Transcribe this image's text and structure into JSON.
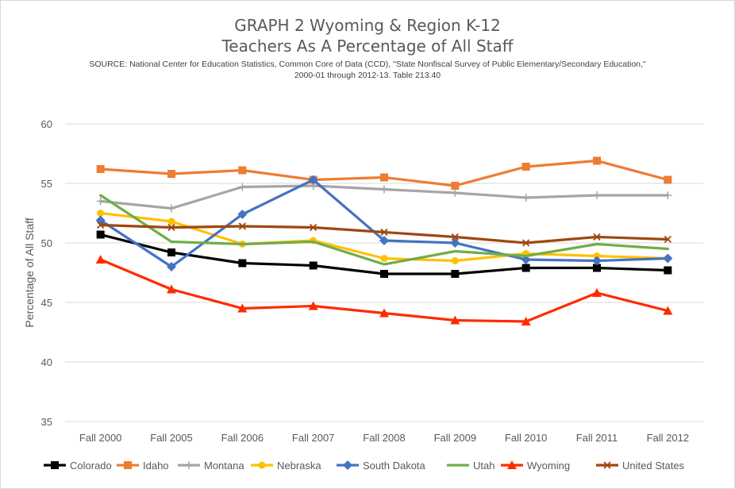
{
  "chart_data": {
    "type": "line",
    "title": "GRAPH 2 Wyoming & Region K-12",
    "subtitle": "Teachers As A Percentage of All Staff",
    "source_line1": "SOURCE: National Center for Education Statistics, Common Core of Data (CCD), \"State Nonfiscal Survey of Public Elementary/Secondary Education,\"",
    "source_line2": "2000-01 through 2012-13.  Table 213.40",
    "ylabel": "Percentage of All Staff",
    "xlabel": "",
    "ylim": [
      35,
      60
    ],
    "yticks": [
      35,
      40,
      45,
      50,
      55,
      60
    ],
    "grid": true,
    "legend_position": "bottom",
    "categories": [
      "Fall 2000",
      "Fall 2005",
      "Fall 2006",
      "Fall 2007",
      "Fall 2008",
      "Fall 2009",
      "Fall 2010",
      "Fall 2011",
      "Fall 2012"
    ],
    "series": [
      {
        "name": "Colorado",
        "color": "#000000",
        "marker": "square",
        "values": [
          50.7,
          49.2,
          48.3,
          48.1,
          47.4,
          47.4,
          47.9,
          47.9,
          47.7
        ]
      },
      {
        "name": "Idaho",
        "color": "#ED7D31",
        "marker": "square",
        "values": [
          56.2,
          55.8,
          56.1,
          55.3,
          55.5,
          54.8,
          56.4,
          56.9,
          55.3
        ]
      },
      {
        "name": "Montana",
        "color": "#A5A5A5",
        "marker": "plus",
        "values": [
          53.5,
          52.9,
          54.7,
          54.8,
          54.5,
          54.2,
          53.8,
          54.0,
          54.0
        ]
      },
      {
        "name": "Nebraska",
        "color": "#FFC000",
        "marker": "circle",
        "values": [
          52.5,
          51.8,
          49.9,
          50.2,
          48.7,
          48.5,
          49.1,
          48.9,
          48.7
        ]
      },
      {
        "name": "South Dakota",
        "color": "#4472C4",
        "marker": "diamond",
        "values": [
          51.9,
          48.0,
          52.4,
          55.3,
          50.2,
          50.0,
          48.6,
          48.5,
          48.7
        ]
      },
      {
        "name": "Utah",
        "color": "#70AD47",
        "marker": "none",
        "values": [
          54.0,
          50.1,
          49.9,
          50.1,
          48.2,
          49.3,
          48.9,
          49.9,
          49.5
        ]
      },
      {
        "name": "Wyoming",
        "color": "#FF2A00",
        "marker": "triangle",
        "values": [
          48.6,
          46.1,
          44.5,
          44.7,
          44.1,
          43.5,
          43.4,
          45.8,
          44.3
        ]
      },
      {
        "name": "United States",
        "color": "#9E480E",
        "marker": "x",
        "values": [
          51.5,
          51.3,
          51.4,
          51.3,
          50.9,
          50.5,
          50.0,
          50.5,
          50.3
        ]
      }
    ]
  }
}
